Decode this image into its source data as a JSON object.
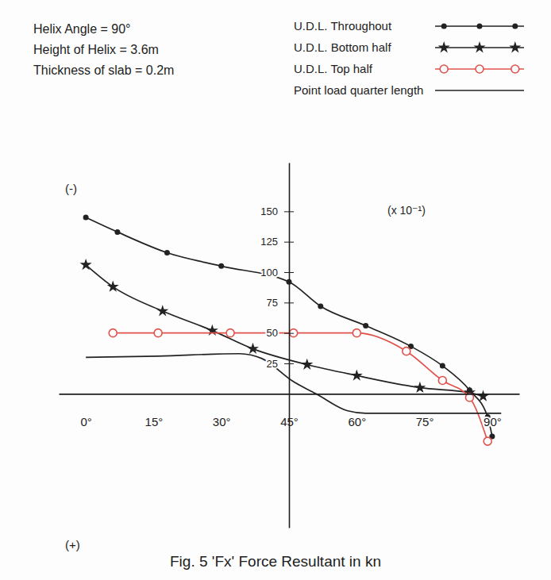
{
  "chart_data": {
    "type": "line",
    "title": "Fig. 5 'Fx' Force Resultant in kn",
    "annotations": [
      "Helix Angle = 90°",
      "Height of Helix = 3.6m",
      "Thickness of slab = 0.2m",
      "(-)",
      "(+)",
      "(x 10⁻¹)"
    ],
    "xlim": [
      -6,
      96
    ],
    "xticks": [
      {
        "value": 0,
        "label": "0°"
      },
      {
        "value": 15,
        "label": "15°"
      },
      {
        "value": 30,
        "label": "30°"
      },
      {
        "value": 45,
        "label": "45°"
      },
      {
        "value": 60,
        "label": "60°"
      },
      {
        "value": 75,
        "label": "75°"
      },
      {
        "value": 90,
        "label": "90°"
      }
    ],
    "ylim": [
      -110,
      190
    ],
    "yticks": [
      25,
      50,
      75,
      100,
      125,
      150
    ],
    "grid": false,
    "legend": "top-right",
    "series": [
      {
        "name": "U.D.L. Throughout",
        "color": "#222222",
        "marker": "dot",
        "x": [
          0,
          7,
          18,
          30,
          45,
          52,
          62,
          72,
          79,
          85,
          89,
          90
        ],
        "values": [
          145,
          133,
          116,
          105,
          92,
          72,
          56,
          39,
          23,
          3,
          -19,
          -35
        ]
      },
      {
        "name": "U.D.L. Bottom half",
        "color": "#222222",
        "marker": "star",
        "x": [
          0,
          6,
          17,
          28,
          37,
          49,
          60,
          74,
          85,
          88
        ],
        "values": [
          106,
          88,
          68,
          52,
          37,
          24,
          15,
          5,
          1,
          -2
        ]
      },
      {
        "name": "U.D.L. Top half",
        "color": "#e0524c",
        "marker": "circle",
        "x": [
          6,
          16,
          32,
          46,
          60,
          71,
          79,
          85,
          89
        ],
        "values": [
          50,
          50,
          50,
          50,
          50,
          35,
          11,
          -3,
          -39
        ]
      },
      {
        "name": "Point load quarter length",
        "color": "#222222",
        "marker": "none",
        "x": [
          0,
          16,
          34,
          39,
          46,
          51,
          58,
          62,
          92
        ],
        "values": [
          30,
          31,
          33,
          29,
          10,
          0,
          -14,
          -16,
          -16
        ]
      }
    ]
  }
}
